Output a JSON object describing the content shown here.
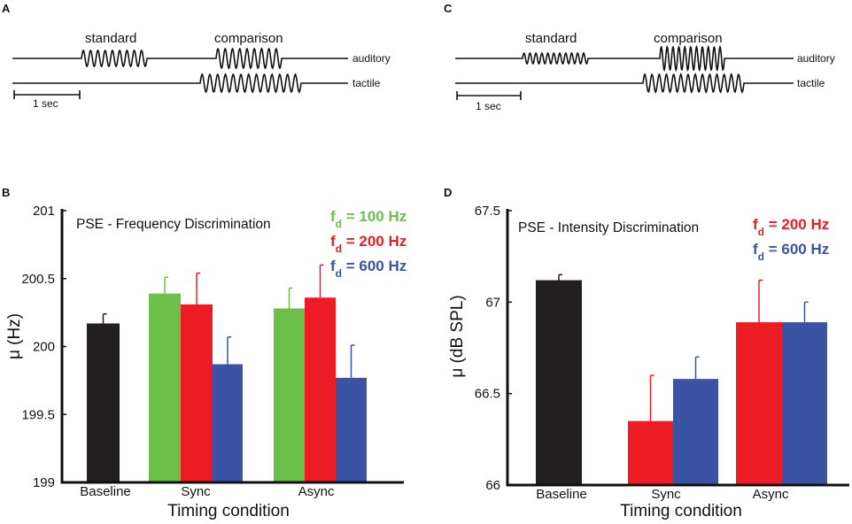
{
  "panels": {
    "A": {
      "label": "A",
      "standard": "standard",
      "comparison": "comparison",
      "auditory": "auditory",
      "tactile": "tactile",
      "scale": "1 sec"
    },
    "C": {
      "label": "C",
      "standard": "standard",
      "comparison": "comparison",
      "auditory": "auditory",
      "tactile": "tactile",
      "scale": "1 sec"
    }
  },
  "colors": {
    "black": "#231f20",
    "green": "#6cc04a",
    "red": "#ed1c24",
    "blue": "#3a53a4"
  },
  "chart_data": [
    {
      "panel": "B",
      "type": "bar",
      "title": "PSE - Frequency Discrimination",
      "xlabel": "Timing condition",
      "ylabel": "μ (Hz)",
      "ylim": [
        199,
        201
      ],
      "yticks": [
        "199",
        "199.5",
        "200",
        "200.5",
        "201"
      ],
      "ytick_values": [
        199,
        199.5,
        200,
        200.5,
        201
      ],
      "categories": [
        "Baseline",
        "Sync",
        "Async"
      ],
      "legend": [
        {
          "main": "f",
          "sub": "d",
          "text": " = 100 Hz",
          "color": "#6cc04a"
        },
        {
          "main": "f",
          "sub": "d",
          "text": " = 200 Hz",
          "color": "#ed1c24"
        },
        {
          "main": "f",
          "sub": "d",
          "text": " = 600 Hz",
          "color": "#3a53a4"
        }
      ],
      "bars": [
        {
          "group": "Baseline",
          "series": "baseline",
          "value": 200.17,
          "error": 0.07,
          "color": "#231f20"
        },
        {
          "group": "Sync",
          "series": "100 Hz",
          "value": 200.39,
          "error": 0.12,
          "color": "#6cc04a"
        },
        {
          "group": "Sync",
          "series": "200 Hz",
          "value": 200.31,
          "error": 0.23,
          "color": "#ed1c24"
        },
        {
          "group": "Sync",
          "series": "600 Hz",
          "value": 199.87,
          "error": 0.2,
          "color": "#3a53a4"
        },
        {
          "group": "Async",
          "series": "100 Hz",
          "value": 200.28,
          "error": 0.15,
          "color": "#6cc04a"
        },
        {
          "group": "Async",
          "series": "200 Hz",
          "value": 200.36,
          "error": 0.24,
          "color": "#ed1c24"
        },
        {
          "group": "Async",
          "series": "600 Hz",
          "value": 199.77,
          "error": 0.24,
          "color": "#3a53a4"
        }
      ]
    },
    {
      "panel": "D",
      "type": "bar",
      "title": "PSE - Intensity Discrimination",
      "xlabel": "Timing condition",
      "ylabel": "μ (dB SPL)",
      "ylim": [
        66,
        67.5
      ],
      "yticks": [
        "66",
        "66.5",
        "67",
        "67.5"
      ],
      "ytick_values": [
        66,
        66.5,
        67,
        67.5
      ],
      "categories": [
        "Baseline",
        "Sync",
        "Async"
      ],
      "legend": [
        {
          "main": "f",
          "sub": "d",
          "text": " = 200 Hz",
          "color": "#ed1c24"
        },
        {
          "main": "f",
          "sub": "d",
          "text": " = 600 Hz",
          "color": "#3a53a4"
        }
      ],
      "bars": [
        {
          "group": "Baseline",
          "series": "baseline",
          "value": 67.12,
          "error": 0.03,
          "color": "#231f20"
        },
        {
          "group": "Sync",
          "series": "200 Hz",
          "value": 66.35,
          "error": 0.25,
          "color": "#ed1c24"
        },
        {
          "group": "Sync",
          "series": "600 Hz",
          "value": 66.58,
          "error": 0.12,
          "color": "#3a53a4"
        },
        {
          "group": "Async",
          "series": "200 Hz",
          "value": 66.89,
          "error": 0.23,
          "color": "#ed1c24"
        },
        {
          "group": "Async",
          "series": "600 Hz",
          "value": 66.89,
          "error": 0.11,
          "color": "#3a53a4"
        }
      ]
    }
  ]
}
